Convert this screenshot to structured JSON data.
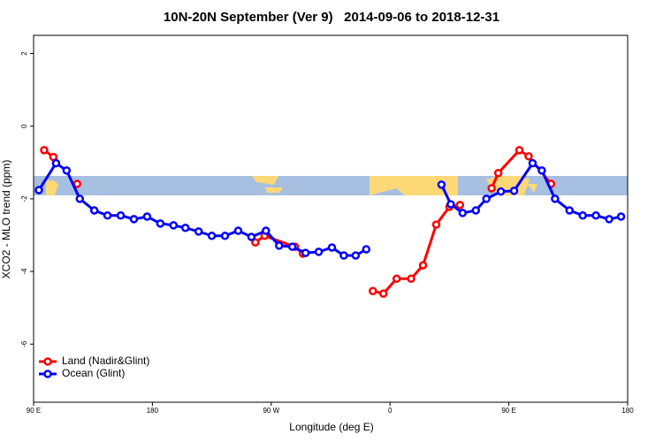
{
  "chart_data": {
    "type": "line",
    "title": "10N-20N September (Ver 9)   2014-09-06 to 2018-12-31",
    "xlabel": "Longitude (deg E)",
    "ylabel": "XCO2 - MLO trend (ppm)",
    "xlim": [
      90,
      540
    ],
    "ylim": [
      -7.6,
      2.5
    ],
    "xticks": [
      {
        "value": 90,
        "label": "90 E"
      },
      {
        "value": 180,
        "label": "180"
      },
      {
        "value": 270,
        "label": "90 W"
      },
      {
        "value": 360,
        "label": "0"
      },
      {
        "value": 450,
        "label": "90 E"
      },
      {
        "value": 540,
        "label": "180"
      }
    ],
    "yticks": [
      2,
      0,
      -2,
      -4,
      -6
    ],
    "legend": "bottomleft",
    "series": [
      {
        "name": "Land (Nadir&Glint)",
        "color": "#ff0000",
        "x": [
          98,
          105,
          115,
          123,
          190,
          258,
          265,
          288,
          294,
          320,
          347,
          355,
          365,
          376,
          385,
          395,
          405,
          413,
          425,
          437,
          442,
          458,
          465,
          482
        ],
        "values": [
          -0.66,
          -0.85,
          null,
          -1.59,
          null,
          -3.2,
          -3.02,
          -3.32,
          -3.51,
          null,
          -4.54,
          -4.61,
          -4.2,
          -4.2,
          -3.83,
          -2.71,
          -2.22,
          -2.17,
          null,
          -1.71,
          -1.29,
          -0.66,
          -0.83,
          -1.59
        ]
      },
      {
        "name": "Ocean (Glint)",
        "color": "#0000ff",
        "x": [
          94,
          107,
          115,
          125,
          136,
          146,
          156,
          166,
          176,
          186,
          196,
          205,
          215,
          225,
          235,
          245,
          255,
          266,
          276,
          286,
          296,
          306,
          316,
          325,
          334,
          342,
          370,
          399,
          406,
          415,
          425,
          433,
          444,
          454,
          468,
          475,
          485,
          496,
          506,
          516,
          526,
          535
        ],
        "values": [
          -1.76,
          -1.02,
          -1.22,
          -2.0,
          -2.32,
          -2.46,
          -2.46,
          -2.56,
          -2.49,
          -2.68,
          -2.73,
          -2.8,
          -2.9,
          -3.02,
          -3.02,
          -2.88,
          -3.05,
          -2.88,
          -3.29,
          -3.32,
          -3.49,
          -3.46,
          -3.34,
          -3.56,
          -3.56,
          -3.39,
          null,
          -1.61,
          -2.15,
          -2.39,
          -2.32,
          -2.0,
          -1.8,
          -1.78,
          -1.02,
          -1.22,
          -2.0,
          -2.32,
          -2.46,
          -2.46,
          -2.56,
          -2.49
        ]
      }
    ]
  }
}
